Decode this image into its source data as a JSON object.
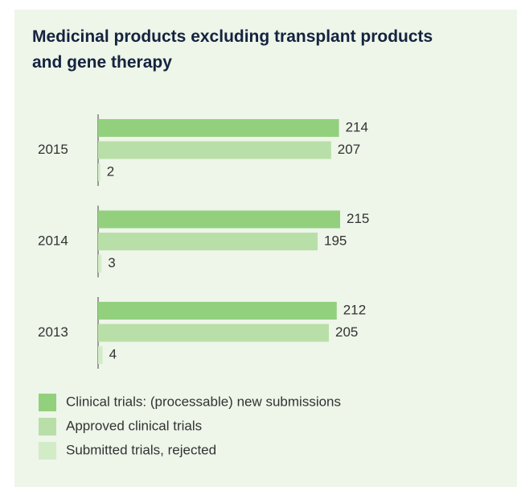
{
  "chart_data": {
    "type": "bar",
    "orientation": "horizontal",
    "title": "Medicinal products excluding transplant products and gene therapy",
    "categories": [
      "2015",
      "2014",
      "2013"
    ],
    "series": [
      {
        "name": "Clinical trials: (processable) new submissions",
        "color": "#92d07e",
        "values": [
          214,
          215,
          212
        ]
      },
      {
        "name": "Approved clinical trials",
        "color": "#b9dfa8",
        "values": [
          207,
          195,
          205
        ]
      },
      {
        "name": "Submitted trials, rejected",
        "color": "#d3ecc8",
        "values": [
          2,
          3,
          4
        ]
      }
    ],
    "data_labels": true,
    "legend": "bottom-left"
  }
}
